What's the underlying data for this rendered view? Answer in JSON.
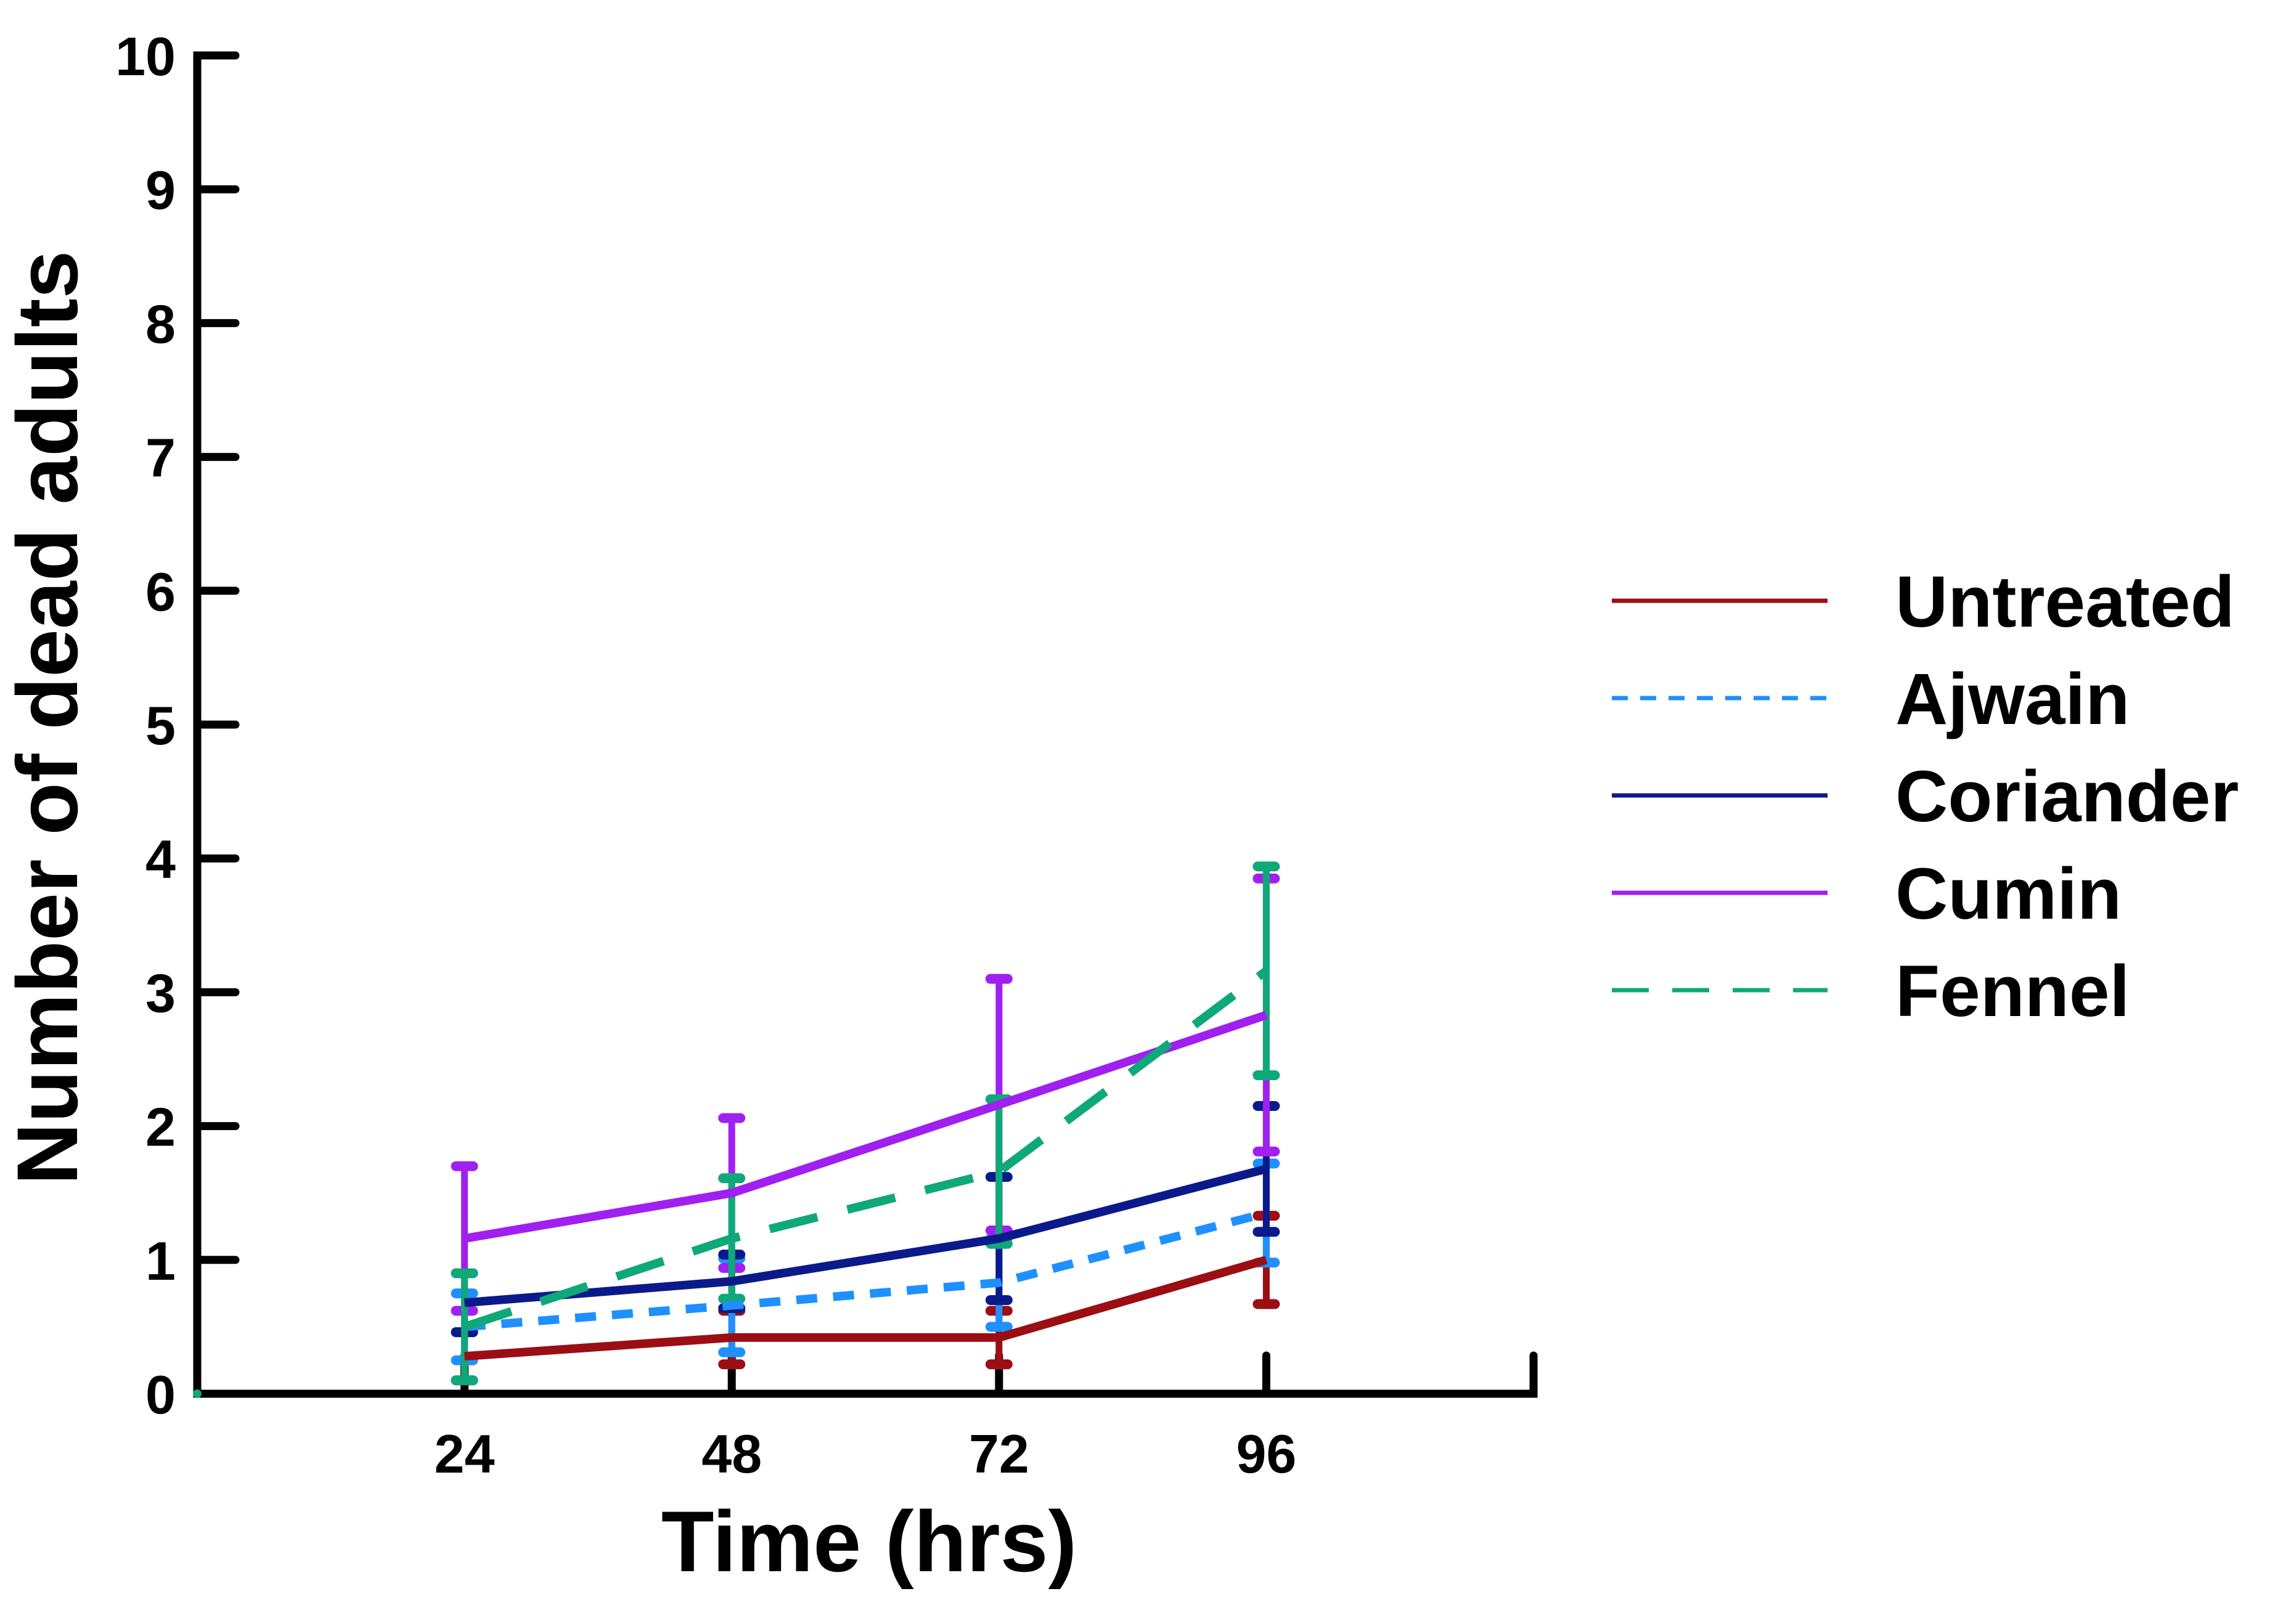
{
  "chart_data": {
    "type": "line",
    "title": "",
    "xlabel": "Time (hrs)",
    "ylabel": "Number of dead adults",
    "x": [
      24,
      48,
      72,
      96
    ],
    "xticks": [
      24,
      48,
      72,
      96
    ],
    "xlim": [
      0,
      120
    ],
    "yticks": [
      0,
      1,
      2,
      3,
      4,
      5,
      6,
      7,
      8,
      9,
      10
    ],
    "ylim": [
      0,
      10
    ],
    "grid": false,
    "legend_position": "right",
    "series": [
      {
        "name": "Untreated",
        "color": "#9B0E14",
        "dash": "solid",
        "values": [
          0.28,
          0.42,
          0.42,
          1.0
        ],
        "err": [
          0.18,
          0.2,
          0.2,
          0.33
        ]
      },
      {
        "name": "Ajwain",
        "color": "#1E90FF",
        "dash": "short-dash",
        "values": [
          0.5,
          0.66,
          0.83,
          1.35
        ],
        "err": [
          0.25,
          0.35,
          0.33,
          0.37
        ]
      },
      {
        "name": "Coriander",
        "color": "#0B1A8A",
        "dash": "solid",
        "values": [
          0.68,
          0.84,
          1.16,
          1.68
        ],
        "err": [
          0.22,
          0.2,
          0.46,
          0.47
        ]
      },
      {
        "name": "Cumin",
        "color": "#A020F0",
        "dash": "solid",
        "values": [
          1.16,
          1.5,
          2.16,
          2.83
        ],
        "err": [
          0.54,
          0.56,
          0.94,
          1.02
        ]
      },
      {
        "name": "Fennel",
        "color": "#0FA878",
        "dash": "long-dash",
        "values": [
          0.5,
          1.16,
          1.66,
          3.16
        ],
        "err": [
          0.4,
          0.45,
          0.54,
          0.78
        ]
      }
    ]
  }
}
